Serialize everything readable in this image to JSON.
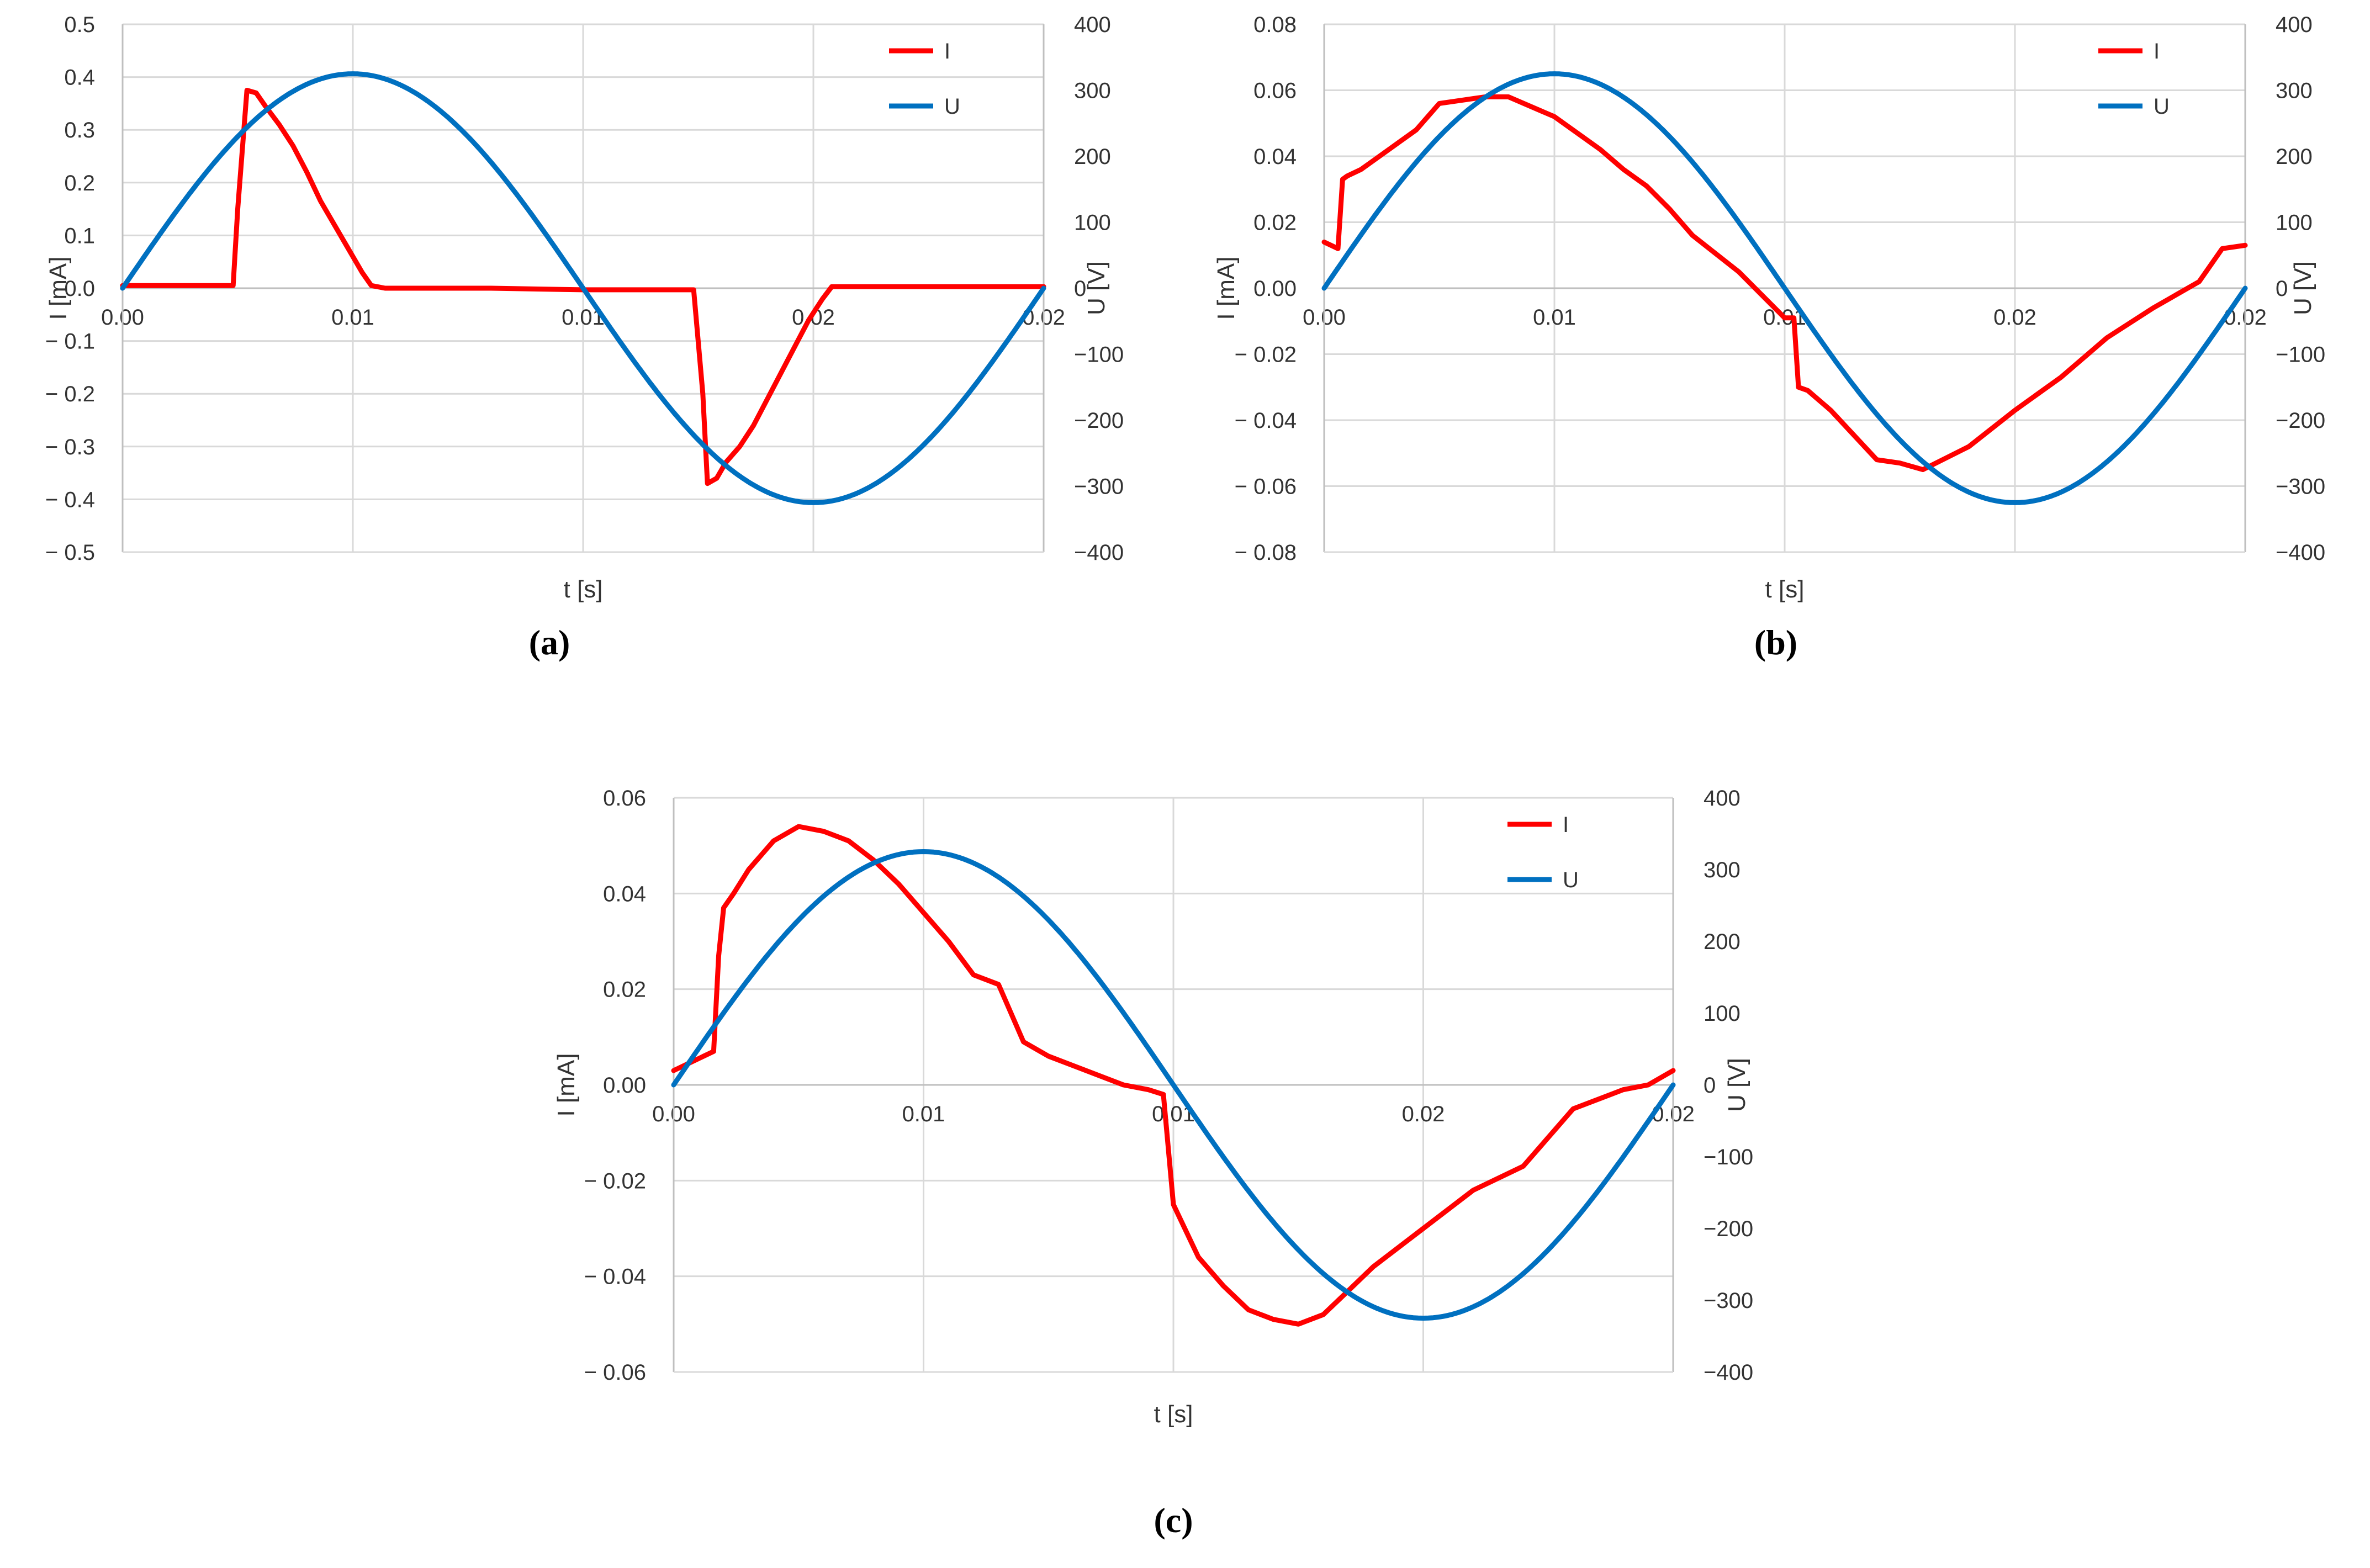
{
  "figure": {
    "colors": {
      "I": "#ff0000",
      "U": "#0070c0"
    }
  },
  "chart_data": [
    {
      "type": "line",
      "panel_label": "(a)",
      "xlabel": "t [s]",
      "ylabel_left": "I [mA]",
      "ylabel_right": "U [V]",
      "xlim": [
        0,
        0.02
      ],
      "ylim_left": [
        -0.5,
        0.5
      ],
      "ylim_right": [
        -400,
        400
      ],
      "x_tick_labels": [
        "0.00",
        "0.01",
        "0.01",
        "0.02",
        "0.02"
      ],
      "y_left_ticks": [
        "0.5",
        "0.4",
        "0.3",
        "0.2",
        "0.1",
        "0.0",
        "− 0.1",
        "− 0.2",
        "− 0.3",
        "− 0.4",
        "− 0.5"
      ],
      "y_right_ticks": [
        "400",
        "300",
        "200",
        "100",
        "0",
        "−100",
        "−200",
        "−300",
        "−400"
      ],
      "grid": true,
      "legend": "top-right",
      "series": [
        {
          "name": "I",
          "axis": "left",
          "color": "#ff0000",
          "x": [
            0,
            0.0024,
            0.0025,
            0.0027,
            0.0029,
            0.0031,
            0.0034,
            0.0037,
            0.004,
            0.0043,
            0.0046,
            0.0049,
            0.0052,
            0.0054,
            0.0057,
            0.008,
            0.01,
            0.0124,
            0.0126,
            0.0127,
            0.0129,
            0.0131,
            0.0134,
            0.0137,
            0.014,
            0.0143,
            0.0146,
            0.0149,
            0.0152,
            0.0154,
            0.0157,
            0.0175,
            0.02
          ],
          "y": [
            0.005,
            0.005,
            0.15,
            0.375,
            0.37,
            0.345,
            0.31,
            0.27,
            0.22,
            0.165,
            0.12,
            0.075,
            0.03,
            0.005,
            0.0,
            0.0,
            -0.003,
            -0.003,
            -0.2,
            -0.37,
            -0.36,
            -0.33,
            -0.3,
            -0.26,
            -0.21,
            -0.16,
            -0.11,
            -0.06,
            -0.02,
            0.003,
            0.003,
            0.003,
            0.003
          ]
        },
        {
          "name": "U",
          "axis": "right",
          "color": "#0070c0",
          "function": "sine",
          "amplitude": 325,
          "period": 0.02
        }
      ]
    },
    {
      "type": "line",
      "panel_label": "(b)",
      "xlabel": "t [s]",
      "ylabel_left": "I [mA]",
      "ylabel_right": "U [V]",
      "xlim": [
        0,
        0.02
      ],
      "ylim_left": [
        -0.08,
        0.08
      ],
      "ylim_right": [
        -400,
        400
      ],
      "x_tick_labels": [
        "0.00",
        "0.01",
        "0.01",
        "0.02",
        "0.02"
      ],
      "y_left_ticks": [
        "0.08",
        "0.06",
        "0.04",
        "0.02",
        "0.00",
        "− 0.02",
        "− 0.04",
        "− 0.06",
        "− 0.08"
      ],
      "y_right_ticks": [
        "400",
        "300",
        "200",
        "100",
        "0",
        "−100",
        "−200",
        "−300",
        "−400"
      ],
      "grid": true,
      "legend": "top-right",
      "series": [
        {
          "name": "I",
          "axis": "left",
          "color": "#ff0000",
          "x": [
            0,
            0.0003,
            0.0004,
            0.0005,
            0.0008,
            0.001,
            0.0015,
            0.002,
            0.0025,
            0.003,
            0.0035,
            0.004,
            0.005,
            0.006,
            0.0065,
            0.007,
            0.0075,
            0.008,
            0.009,
            0.01,
            0.0102,
            0.0103,
            0.0105,
            0.011,
            0.012,
            0.0125,
            0.013,
            0.014,
            0.015,
            0.016,
            0.017,
            0.018,
            0.019,
            0.0195,
            0.02
          ],
          "y": [
            0.014,
            0.012,
            0.033,
            0.034,
            0.036,
            0.038,
            0.043,
            0.048,
            0.056,
            0.057,
            0.058,
            0.058,
            0.052,
            0.042,
            0.036,
            0.031,
            0.024,
            0.016,
            0.005,
            -0.009,
            -0.009,
            -0.03,
            -0.031,
            -0.037,
            -0.052,
            -0.053,
            -0.055,
            -0.048,
            -0.037,
            -0.027,
            -0.015,
            -0.006,
            0.002,
            0.012,
            0.013
          ]
        },
        {
          "name": "U",
          "axis": "right",
          "color": "#0070c0",
          "function": "sine",
          "amplitude": 325,
          "period": 0.02
        }
      ]
    },
    {
      "type": "line",
      "panel_label": "(c)",
      "xlabel": "t [s]",
      "ylabel_left": "I [mA]",
      "ylabel_right": "U [V]",
      "xlim": [
        0,
        0.02
      ],
      "ylim_left": [
        -0.06,
        0.06
      ],
      "ylim_right": [
        -400,
        400
      ],
      "x_tick_labels": [
        "0.00",
        "0.01",
        "0.01",
        "0.02",
        "0.02"
      ],
      "y_left_ticks": [
        "0.06",
        "0.04",
        "0.02",
        "0.00",
        "− 0.02",
        "− 0.04",
        "− 0.06"
      ],
      "y_right_ticks": [
        "400",
        "300",
        "200",
        "100",
        "0",
        "−100",
        "−200",
        "−300",
        "−400"
      ],
      "grid": true,
      "legend": "top-right",
      "series": [
        {
          "name": "I",
          "axis": "left",
          "color": "#ff0000",
          "x": [
            0,
            0.0008,
            0.0009,
            0.001,
            0.0012,
            0.0015,
            0.002,
            0.0025,
            0.003,
            0.0035,
            0.004,
            0.0045,
            0.005,
            0.0055,
            0.006,
            0.0065,
            0.007,
            0.0075,
            0.008,
            0.0085,
            0.009,
            0.0095,
            0.0098,
            0.01,
            0.0105,
            0.011,
            0.0115,
            0.012,
            0.0125,
            0.013,
            0.0135,
            0.014,
            0.015,
            0.016,
            0.017,
            0.018,
            0.019,
            0.0195,
            0.02
          ],
          "y": [
            0.003,
            0.007,
            0.027,
            0.037,
            0.04,
            0.045,
            0.051,
            0.054,
            0.053,
            0.051,
            0.047,
            0.042,
            0.036,
            0.03,
            0.023,
            0.021,
            0.009,
            0.006,
            0.004,
            0.002,
            0.0,
            -0.001,
            -0.002,
            -0.025,
            -0.036,
            -0.042,
            -0.047,
            -0.049,
            -0.05,
            -0.048,
            -0.043,
            -0.038,
            -0.03,
            -0.022,
            -0.017,
            -0.005,
            -0.001,
            0.0,
            0.003
          ]
        },
        {
          "name": "U",
          "axis": "right",
          "color": "#0070c0",
          "function": "sine",
          "amplitude": 325,
          "period": 0.02
        }
      ]
    }
  ]
}
